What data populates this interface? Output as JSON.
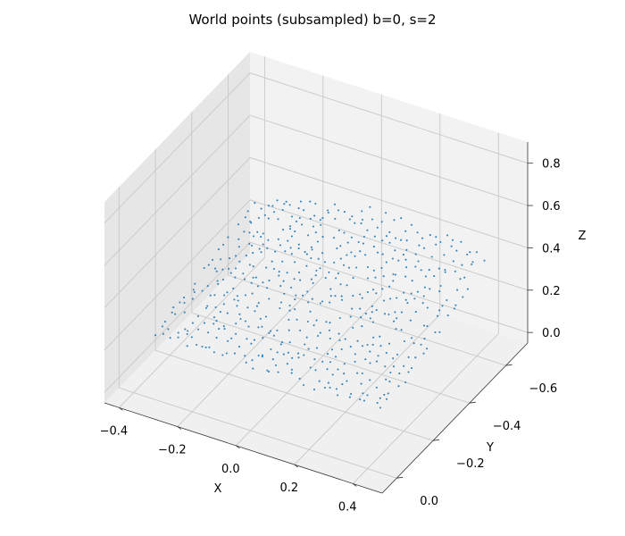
{
  "chart_data": {
    "type": "scatter",
    "projection": "3d",
    "title": "World points (subsampled) b=0, s=2",
    "xlabel": "X",
    "ylabel": "Y",
    "zlabel": "Z",
    "xlim": [
      -0.45,
      0.5
    ],
    "ylim": [
      -0.72,
      0.08
    ],
    "zlim": [
      -0.05,
      0.9
    ],
    "x_ticks": [
      "−0.4",
      "−0.2",
      "0.0",
      "0.2",
      "0.4"
    ],
    "x_tick_values": [
      -0.4,
      -0.2,
      0.0,
      0.2,
      0.4
    ],
    "y_ticks": [
      "−0.6",
      "−0.4",
      "−0.2",
      "0.0"
    ],
    "y_tick_values": [
      -0.6,
      -0.4,
      -0.2,
      0.0
    ],
    "z_ticks": [
      "0.0",
      "0.2",
      "0.4",
      "0.6",
      "0.8"
    ],
    "z_tick_values": [
      0.0,
      0.2,
      0.4,
      0.6,
      0.8
    ],
    "grid": true,
    "marker_color": "#1f77b4",
    "pane_color": "#f2f2f2",
    "point_cloud": {
      "description_of_extent": "points spread over X -0.36..0.42, Y -0.63..-0.05, Z 0.1..0.45",
      "x_range": [
        -0.36,
        0.42
      ],
      "y_range": [
        -0.63,
        -0.05
      ],
      "z_range": [
        0.1,
        0.45
      ],
      "x_samples": 28,
      "y_samples": 22
    }
  }
}
